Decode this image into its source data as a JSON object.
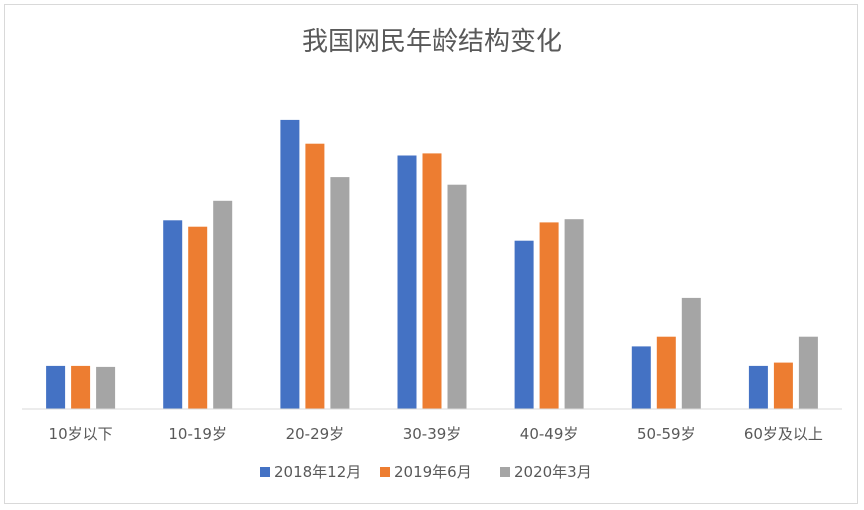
{
  "chart_data": {
    "type": "bar",
    "title": "我国网民年龄结构变化",
    "xlabel": "",
    "ylabel": "",
    "categories": [
      "10岁以下",
      "10-19岁",
      "20-29岁",
      "30-39岁",
      "40-49岁",
      "50-59岁",
      "60岁及以上"
    ],
    "series": [
      {
        "name": "2018年12月",
        "color": "#4472c4",
        "values": [
          4.0,
          17.5,
          26.8,
          23.5,
          15.6,
          5.8,
          4.0
        ]
      },
      {
        "name": "2019年6月",
        "color": "#ed7d31",
        "values": [
          4.0,
          16.9,
          24.6,
          23.7,
          17.3,
          6.7,
          4.3
        ]
      },
      {
        "name": "2020年3月",
        "color": "#a5a5a5",
        "values": [
          3.9,
          19.3,
          21.5,
          20.8,
          17.6,
          10.3,
          6.7
        ]
      }
    ],
    "ylim": [
      0,
      28
    ],
    "grid": false,
    "legend": "bottom"
  }
}
